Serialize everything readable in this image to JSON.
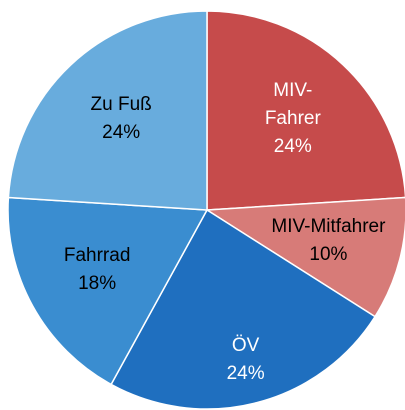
{
  "chart_data": {
    "type": "pie",
    "categories": [
      "MIV-Fahrer",
      "MIV-Mitfahrer",
      "ÖV",
      "Fahrrad",
      "Zu Fuß"
    ],
    "values": [
      24,
      10,
      24,
      18,
      24
    ],
    "value_labels": [
      "24%",
      "10%",
      "24%",
      "18%",
      "24%"
    ],
    "colors": [
      "#c64b4b",
      "#d77b78",
      "#1f6fbf",
      "#3a8dd0",
      "#68acdd"
    ],
    "label_colors": [
      "#ffffff",
      "#000000",
      "#ffffff",
      "#000000",
      "#000000"
    ]
  }
}
